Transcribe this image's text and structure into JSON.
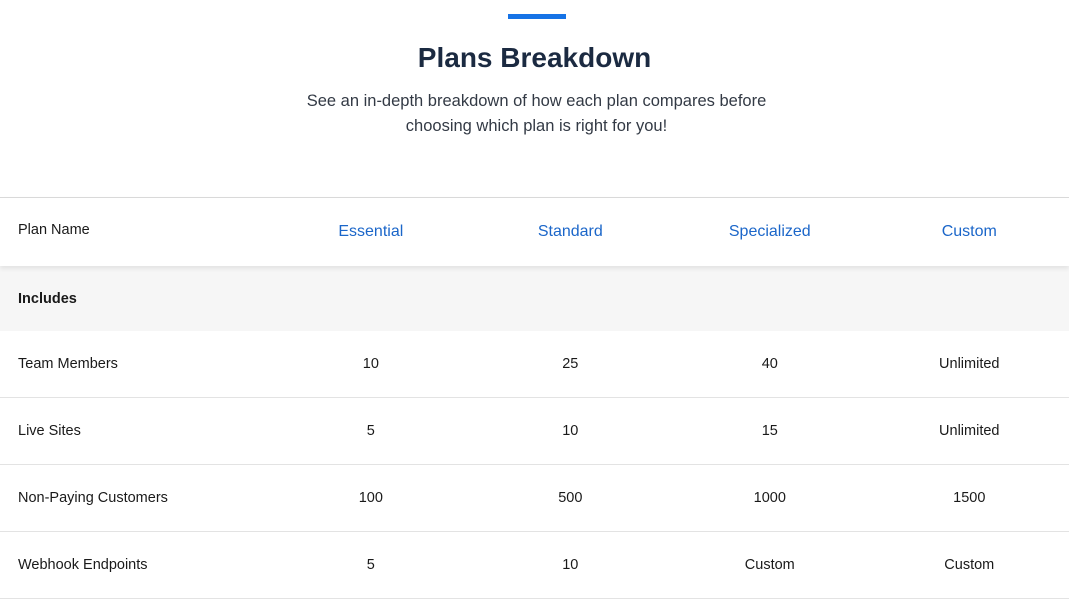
{
  "header": {
    "title": "Plans Breakdown",
    "subtitle": "See an in-depth breakdown of how each plan compares before choosing which plan is right for you!"
  },
  "colors": {
    "accent": "#1673e6",
    "link": "#1b66c9",
    "title": "#1b2a41"
  },
  "table": {
    "header_label": "Plan Name",
    "plans": [
      "Essential",
      "Standard",
      "Specialized",
      "Custom"
    ],
    "section_label": "Includes",
    "rows": [
      {
        "label": "Team Members",
        "values": [
          "10",
          "25",
          "40",
          "Unlimited"
        ]
      },
      {
        "label": "Live Sites",
        "values": [
          "5",
          "10",
          "15",
          "Unlimited"
        ]
      },
      {
        "label": "Non-Paying Customers",
        "values": [
          "100",
          "500",
          "1000",
          "1500"
        ]
      },
      {
        "label": "Webhook Endpoints",
        "values": [
          "5",
          "10",
          "Custom",
          "Custom"
        ]
      }
    ]
  }
}
